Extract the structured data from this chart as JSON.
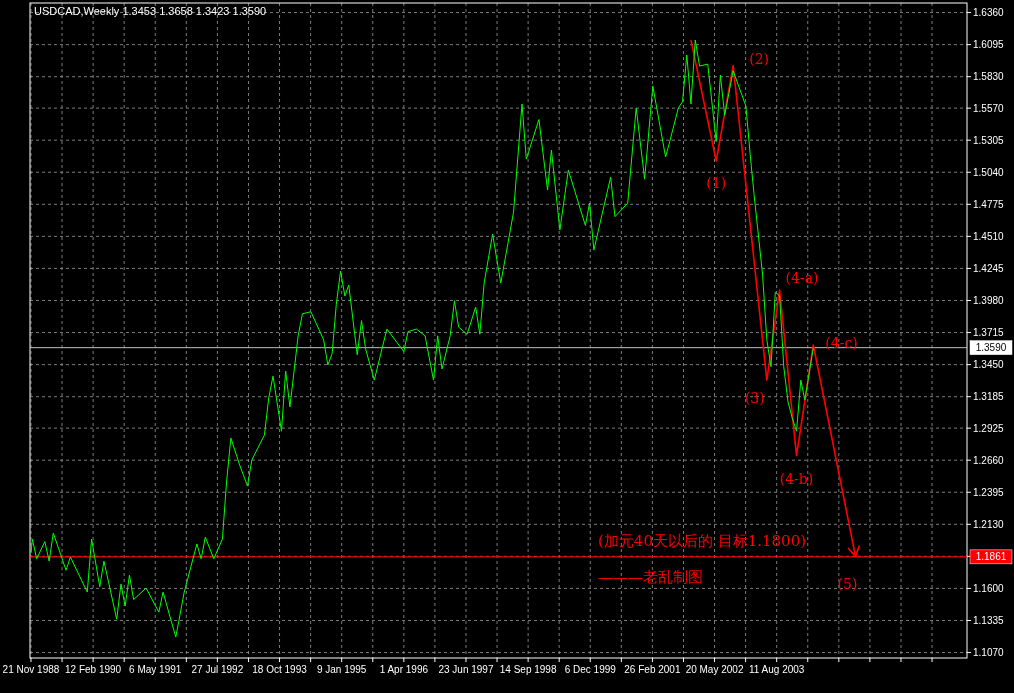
{
  "chart_data": {
    "type": "line",
    "title": "USDCAD,Weekly  1.3453 1.3658 1.3423 1.3590",
    "xlim": [
      "1988-11-14",
      "2007-05-14"
    ],
    "ylim": [
      1.1025,
      1.6439
    ],
    "xticks": [
      {
        "value": "1988-11-21",
        "label": "21 Nov 1988"
      },
      {
        "value": "1989-07-03",
        "label": null
      },
      {
        "value": "1990-02-12",
        "label": "12 Feb 1990"
      },
      {
        "value": "1990-09-24",
        "label": null
      },
      {
        "value": "1991-05-06",
        "label": "6 May 1991"
      },
      {
        "value": "1991-12-16",
        "label": null
      },
      {
        "value": "1992-07-27",
        "label": "27 Jul 1992"
      },
      {
        "value": "1993-03-08",
        "label": null
      },
      {
        "value": "1993-10-18",
        "label": "18 Oct 1993"
      },
      {
        "value": "1994-05-30",
        "label": null
      },
      {
        "value": "1995-01-09",
        "label": "9 Jan 1995"
      },
      {
        "value": "1995-08-21",
        "label": null
      },
      {
        "value": "1996-04-01",
        "label": "1 Apr 1996"
      },
      {
        "value": "1996-11-11",
        "label": null
      },
      {
        "value": "1997-06-23",
        "label": "23 Jun 1997"
      },
      {
        "value": "1998-02-02",
        "label": null
      },
      {
        "value": "1998-09-14",
        "label": "14 Sep 1998"
      },
      {
        "value": "1999-04-26",
        "label": null
      },
      {
        "value": "1999-12-06",
        "label": "6 Dec 1999"
      },
      {
        "value": "2000-07-17",
        "label": null
      },
      {
        "value": "2001-02-26",
        "label": "26 Feb 2001"
      },
      {
        "value": "2001-10-08",
        "label": null
      },
      {
        "value": "2002-05-20",
        "label": "20 May 2002"
      },
      {
        "value": "2002-12-30",
        "label": null
      },
      {
        "value": "2003-08-11",
        "label": "11 Aug 2003"
      },
      {
        "value": "2004-03-22",
        "label": null
      },
      {
        "value": "2004-11-01",
        "label": null
      },
      {
        "value": "2005-06-13",
        "label": null
      },
      {
        "value": "2006-01-23",
        "label": null
      },
      {
        "value": "2006-09-04",
        "label": null
      }
    ],
    "yticks": [
      {
        "value": 1.636,
        "label": "1.6360"
      },
      {
        "value": 1.6095,
        "label": "1.6095"
      },
      {
        "value": 1.583,
        "label": "1.5830"
      },
      {
        "value": 1.557,
        "label": "1.5570"
      },
      {
        "value": 1.5305,
        "label": "1.5305"
      },
      {
        "value": 1.504,
        "label": "1.5040"
      },
      {
        "value": 1.4775,
        "label": "1.4775"
      },
      {
        "value": 1.451,
        "label": "1.4510"
      },
      {
        "value": 1.4245,
        "label": "1.4245"
      },
      {
        "value": 1.398,
        "label": "1.3980"
      },
      {
        "value": 1.3715,
        "label": "1.3715"
      },
      {
        "value": 1.345,
        "label": "1.3450"
      },
      {
        "value": 1.3185,
        "label": "1.3185"
      },
      {
        "value": 1.2925,
        "label": "1.2925"
      },
      {
        "value": 1.266,
        "label": "1.2660"
      },
      {
        "value": 1.2395,
        "label": "1.2395"
      },
      {
        "value": 1.213,
        "label": "1.2130"
      },
      {
        "value": 1.1865,
        "label": null
      },
      {
        "value": 1.16,
        "label": "1.1600"
      },
      {
        "value": 1.1335,
        "label": "1.1335"
      },
      {
        "value": 1.107,
        "label": "1.1070"
      }
    ],
    "grid": true,
    "marker": "none",
    "line_style": "solid",
    "series": [
      {
        "color": "#00ff00",
        "x": [
          "1988-11-21",
          "1988-12",
          "1989-01",
          "1989-03",
          "1989-04",
          "1989-05",
          "1989-08",
          "1989-09",
          "1990-01",
          "1990-02",
          "1990-04",
          "1990-05",
          "1990-08",
          "1990-09",
          "1990-10",
          "1990-11",
          "1990-12",
          "1991-03",
          "1991-06",
          "1991-07",
          "1991-10",
          "1991-12",
          "1992-03",
          "1992-04",
          "1992-05",
          "1992-07",
          "1992-09",
          "1992-10",
          "1992-11",
          "1993-01",
          "1993-03",
          "1993-04",
          "1993-07",
          "1993-08",
          "1993-09",
          "1993-11",
          "1993-12",
          "1994-01",
          "1994-03",
          "1994-04",
          "1994-06",
          "1994-09",
          "1994-10",
          "1994-11",
          "1994-12",
          "1995-01",
          "1995-02",
          "1995-03",
          "1995-05",
          "1995-06",
          "1995-07",
          "1995-09",
          "1995-12",
          "1996-04",
          "1996-05",
          "1996-07",
          "1996-09",
          "1996-11",
          "1996-12",
          "1997-01",
          "1997-03",
          "1997-04",
          "1997-05",
          "1997-07",
          "1997-09",
          "1997-10",
          "1997-11",
          "1998-01",
          "1998-03",
          "1998-06",
          "1998-08",
          "1998-09",
          "1998-12",
          "1999-02",
          "1999-03",
          "1999-05",
          "1999-07",
          "1999-11",
          "1999-12",
          "2000-01",
          "2000-05",
          "2000-06",
          "2000-09",
          "2000-11",
          "2001-01",
          "2001-03",
          "2001-06",
          "2001-07",
          "2001-09",
          "2001-10",
          "2001-11",
          "2001-12",
          "2002-01",
          "2002-02",
          "2002-04",
          "2002-06",
          "2002-07",
          "2002-08",
          "2002-10",
          "2003-01",
          "2003-02",
          "2003-03",
          "2003-05",
          "2003-06",
          "2003-07",
          "2003-08",
          "2003-09",
          "2003-10",
          "2003-11",
          "2003-12",
          "2004-01",
          "2004-02",
          "2004-03",
          "2004-05"
        ],
        "values": [
          1.1892,
          1.2008,
          1.1845,
          1.1987,
          1.1826,
          1.2058,
          1.175,
          1.186,
          1.157,
          1.2008,
          1.1614,
          1.1826,
          1.1346,
          1.1637,
          1.1454,
          1.171,
          1.1508,
          1.1603,
          1.1404,
          1.157,
          1.1198,
          1.157,
          1.1967,
          1.1845,
          1.2024,
          1.1845,
          1.2008,
          1.2479,
          1.2843,
          1.2628,
          1.2446,
          1.2661,
          1.2868,
          1.3174,
          1.3355,
          1.29,
          1.3397,
          1.31,
          1.3688,
          1.387,
          1.3887,
          1.3655,
          1.3447,
          1.354,
          1.3945,
          1.4223,
          1.4017,
          1.4108,
          1.3531,
          1.3814,
          1.3578,
          1.3322,
          1.3744,
          1.3558,
          1.3723,
          1.3744,
          1.3688,
          1.3322,
          1.3688,
          1.3414,
          1.3688,
          1.3978,
          1.376,
          1.3701,
          1.3926,
          1.3701,
          1.4124,
          1.4529,
          1.4124,
          1.4711,
          1.5604,
          1.5149,
          1.5476,
          1.4893,
          1.5223,
          1.4562,
          1.5058,
          1.46,
          1.4785,
          1.4397,
          1.5,
          1.4673,
          1.4785,
          1.5571,
          1.4983,
          1.5752,
          1.5166,
          1.5294,
          1.5571,
          1.5623,
          1.6009,
          1.5604,
          1.6133,
          1.5918,
          1.5934,
          1.5294,
          1.5843,
          1.551,
          1.5879,
          1.5587,
          1.5185,
          1.4856,
          1.4198,
          1.3654,
          1.3432,
          1.4049,
          1.4017,
          1.3432,
          1.3141,
          1.3009,
          1.29,
          1.3322,
          1.3158,
          1.359
        ]
      },
      {
        "color": "#ff0000",
        "x": [
          "2001-12",
          "2002-06",
          "2002-10",
          "2003-06",
          "2003-09",
          "2004-01",
          "2004-05",
          "2005-03"
        ],
        "values": [
          1.6133,
          1.5133,
          1.5922,
          1.3322,
          1.4066,
          1.2698,
          1.3612,
          1.1865
        ]
      }
    ],
    "ref_lines": [
      {
        "axis": "y",
        "value": 1.359,
        "label": "1.3590",
        "color": "#c0c0c0"
      },
      {
        "axis": "y",
        "value": 1.1861,
        "label": "1.1861",
        "color": "#ff0000"
      }
    ],
    "annotations": [
      {
        "text": "(1)",
        "x": "2002-06",
        "y": 1.5133
      },
      {
        "text": "(2)",
        "x": "2002-10",
        "y": 1.5922
      },
      {
        "text": "(3)",
        "x": "2003-06",
        "y": 1.3322
      },
      {
        "text": "(4-a)",
        "x": "2003-09",
        "y": 1.4066
      },
      {
        "text": "(4-b)",
        "x": "2004-01",
        "y": 1.2698
      },
      {
        "text": "(4-c)",
        "x": "2004-05",
        "y": 1.3612
      },
      {
        "text": "(5)",
        "x": "2005-03",
        "y": 1.1865
      },
      "(加元40天以后的   目标1.1800)",
      "———老乱制图"
    ]
  }
}
